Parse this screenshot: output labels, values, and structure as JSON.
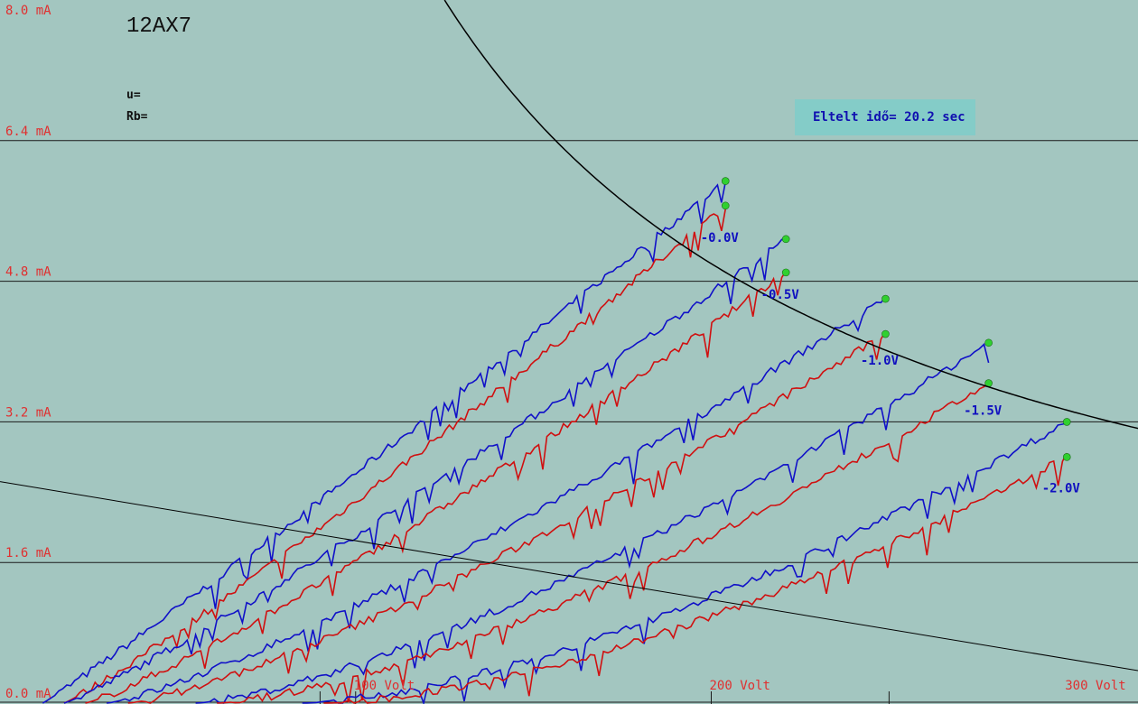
{
  "header": {
    "tube": "12AX7",
    "u_label": "u=",
    "rb_label": "Rb="
  },
  "timer": {
    "text": "Eltelt idő= 20.2 sec"
  },
  "colors": {
    "background": "#a3c6c0",
    "grid": "#1a1a1a",
    "tick_text": "#e03030",
    "series_a": "#1010c8",
    "series_b": "#d01010",
    "endpoint": "#30d030",
    "curve_label": "#1010c0"
  },
  "chart_data": {
    "type": "line",
    "title": "12AX7",
    "xlabel": "",
    "ylabel": "",
    "xlim": [
      0,
      320
    ],
    "ylim": [
      0,
      8.0
    ],
    "y_ticks": [
      "0.0 mA",
      "1.6 mA",
      "3.2 mA",
      "4.8 mA",
      "6.4 mA",
      "8.0 mA"
    ],
    "y_tick_values": [
      0,
      1.6,
      3.2,
      4.8,
      6.4,
      8.0
    ],
    "x_ticks": [
      "100 Volt",
      "200 Volt",
      "300 Volt"
    ],
    "x_tick_values": [
      100,
      200,
      300
    ],
    "grid": true,
    "grid_curves": [
      {
        "grid": "-0.0V",
        "blue_end": [
          204,
          5.94
        ],
        "red_end": [
          204,
          5.66
        ],
        "label_at": [
          197,
          5.25
        ]
      },
      {
        "grid": "-0.5V",
        "blue_end": [
          221,
          5.28
        ],
        "red_end": [
          221,
          4.9
        ],
        "label_at": [
          214,
          4.6
        ]
      },
      {
        "grid": "-1.0V",
        "blue_end": [
          249,
          4.6
        ],
        "red_end": [
          249,
          4.2
        ],
        "label_at": [
          242,
          3.85
        ]
      },
      {
        "grid": "-1.5V",
        "blue_end": [
          278,
          4.1
        ],
        "red_end": [
          278,
          3.64
        ],
        "label_at": [
          271,
          3.28
        ]
      },
      {
        "grid": "-2.0V",
        "blue_end": [
          300,
          3.2
        ],
        "red_end": [
          300,
          2.8
        ],
        "label_at": [
          293,
          2.4
        ]
      }
    ],
    "dissipation_curve": {
      "power_w": 1.0
    },
    "load_line": {
      "v0_volts": 0,
      "i0_ma": 2.52,
      "slope_ma_per_volt": -0.00672
    }
  }
}
